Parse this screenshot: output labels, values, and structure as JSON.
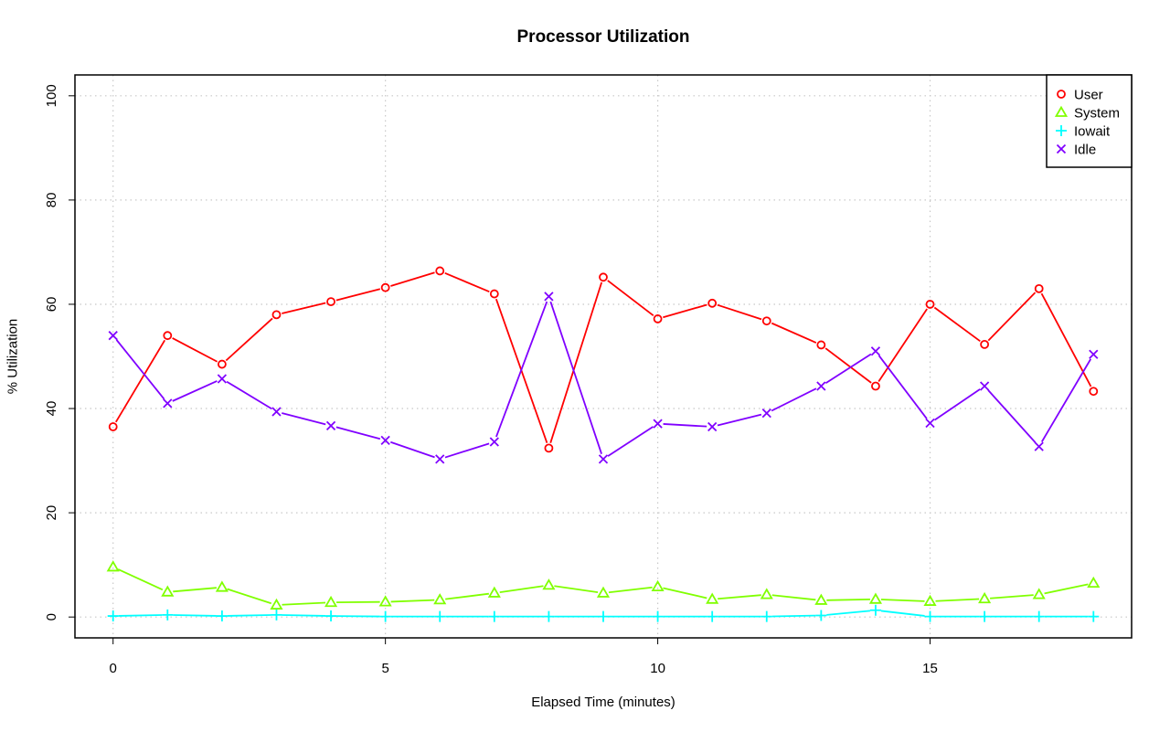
{
  "chart_data": {
    "type": "line",
    "title": "Processor Utilization",
    "xlabel": "Elapsed Time (minutes)",
    "ylabel": "% Utilization",
    "xlim": [
      -0.7,
      18.7
    ],
    "ylim": [
      -4,
      104
    ],
    "x_ticks": [
      0,
      5,
      10,
      15
    ],
    "y_ticks": [
      0,
      20,
      40,
      60,
      80,
      100
    ],
    "grid": true,
    "legend_position": "top-right",
    "x": [
      0,
      1,
      2,
      3,
      4,
      5,
      6,
      7,
      8,
      9,
      10,
      11,
      12,
      13,
      14,
      15,
      16,
      17,
      18
    ],
    "series": [
      {
        "name": "User",
        "color": "#ff0000",
        "marker": "circle",
        "values": [
          36.5,
          54,
          48.5,
          58,
          60.5,
          63.2,
          66.4,
          62,
          32.4,
          65.2,
          57.2,
          60.2,
          56.8,
          52.2,
          44.3,
          60,
          52.3,
          63,
          43.3
        ]
      },
      {
        "name": "System",
        "color": "#80ff00",
        "marker": "triangle",
        "values": [
          9.6,
          4.8,
          5.7,
          2.3,
          2.8,
          2.9,
          3.3,
          4.6,
          6.1,
          4.6,
          5.8,
          3.4,
          4.3,
          3.2,
          3.4,
          3,
          3.5,
          4.3,
          6.5
        ]
      },
      {
        "name": "Iowait",
        "color": "#00ffff",
        "marker": "plus",
        "values": [
          0.2,
          0.4,
          0.2,
          0.4,
          0.2,
          0.1,
          0.1,
          0.1,
          0.1,
          0.1,
          0.1,
          0.1,
          0.1,
          0.3,
          1.3,
          0.1,
          0.1,
          0.1,
          0.1
        ]
      },
      {
        "name": "Idle",
        "color": "#8000ff",
        "marker": "cross",
        "values": [
          54,
          41,
          45.7,
          39.4,
          36.7,
          33.9,
          30.3,
          33.6,
          61.5,
          30.3,
          37.1,
          36.5,
          39.1,
          44.3,
          51,
          37.2,
          44.3,
          32.7,
          50.4
        ]
      }
    ]
  }
}
